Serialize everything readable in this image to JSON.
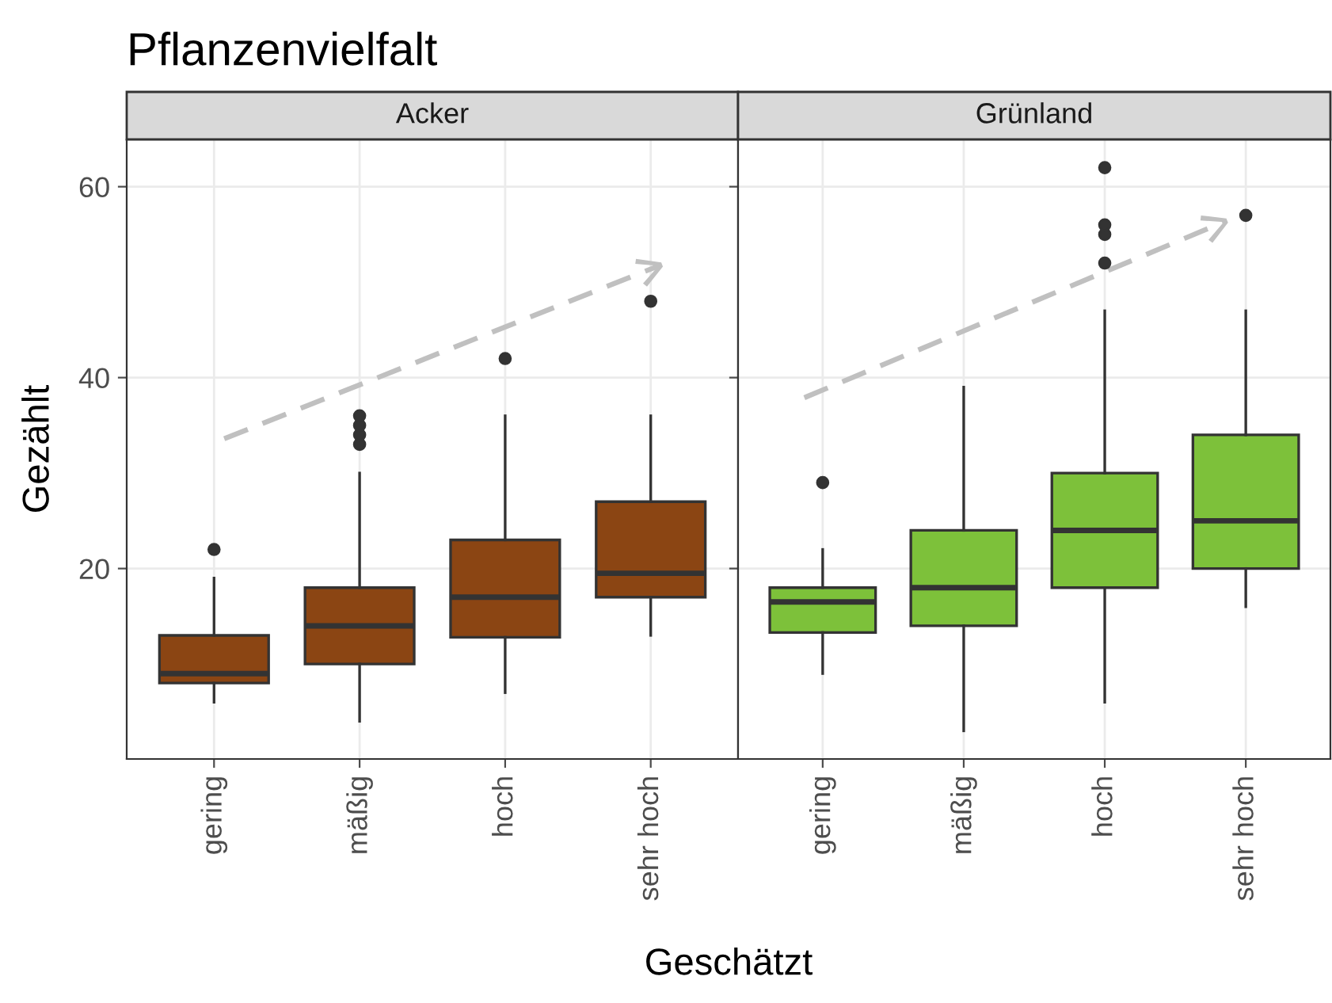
{
  "chart_data": [
    {
      "type": "box",
      "title": "Acker",
      "xlabel": "Geschätzt",
      "ylabel": "Gezählt",
      "annotations": [
        "Pflanzenvielfalt"
      ],
      "categories": [
        "gering",
        "mäßig",
        "hoch",
        "sehr hoch"
      ],
      "series": [
        {
          "color": "#8b4513",
          "boxes": [
            {
              "low": 6,
              "q1": 8,
              "median": 9,
              "q3": 13,
              "high": 19,
              "outliers": [
                22
              ]
            },
            {
              "low": 4,
              "q1": 10,
              "median": 14,
              "q3": 18,
              "high": 30,
              "outliers": [
                33,
                34,
                35,
                36
              ]
            },
            {
              "low": 7,
              "q1": 12.8,
              "median": 17,
              "q3": 23,
              "high": 36,
              "outliers": [
                42
              ]
            },
            {
              "low": 13,
              "q1": 17,
              "median": 19.5,
              "q3": 27,
              "high": 36,
              "outliers": [
                48
              ]
            }
          ]
        }
      ],
      "ylim": [
        0.05,
        64.95
      ],
      "yticks": [
        20,
        40,
        60
      ],
      "grid": true
    },
    {
      "type": "box",
      "title": "Grünland",
      "categories": [
        "gering",
        "mäßig",
        "hoch",
        "sehr hoch"
      ],
      "series": [
        {
          "color": "#7dc13a",
          "boxes": [
            {
              "low": 9,
              "q1": 13.3,
              "median": 16.5,
              "q3": 18,
              "high": 22,
              "outliers": [
                29
              ]
            },
            {
              "low": 3,
              "q1": 14,
              "median": 18,
              "q3": 24,
              "high": 39
            },
            {
              "low": 6,
              "q1": 18,
              "median": 24,
              "q3": 30,
              "high": 47,
              "outliers": [
                52,
                55,
                56,
                62
              ]
            },
            {
              "low": 16,
              "q1": 20,
              "median": 25,
              "q3": 34,
              "high": 47,
              "outliers": [
                57
              ]
            }
          ]
        }
      ],
      "ylim": [
        0.05,
        64.95
      ],
      "yticks": [
        20,
        40,
        60
      ],
      "grid": true,
      "tick_labels": "x"
    }
  ]
}
